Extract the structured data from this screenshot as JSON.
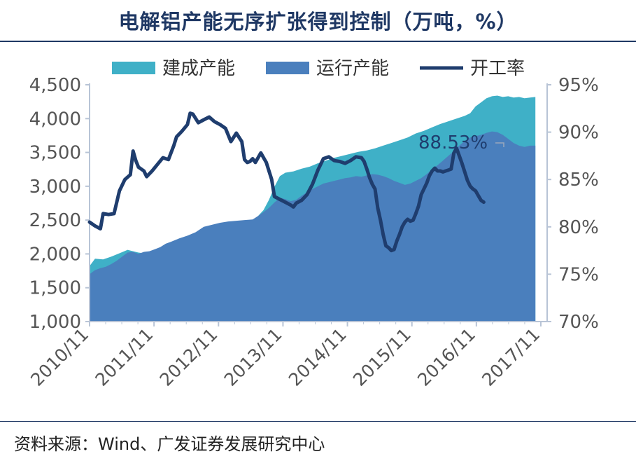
{
  "title": "电解铝产能无序扩张得到控制（万吨，%）",
  "source": "资料来源：Wind、广发证券发展研究中心",
  "chart_data": {
    "type": "area",
    "x_ticks": [
      "2010/11",
      "2011/11",
      "2012/11",
      "2013/11",
      "2014/11",
      "2015/11",
      "2016/11",
      "2017/11"
    ],
    "x_start": "2010/11",
    "y_left": {
      "ticks": [
        "1,000",
        "1,500",
        "2,000",
        "2,500",
        "3,000",
        "3,500",
        "4,000",
        "4,500"
      ],
      "range": [
        1000,
        4500
      ]
    },
    "y_right": {
      "ticks": [
        "70%",
        "75%",
        "80%",
        "85%",
        "90%",
        "95%"
      ],
      "range": [
        70,
        95
      ]
    },
    "legend": {
      "position": "top",
      "items": [
        "建成产能",
        "运行产能",
        "开工率"
      ]
    },
    "colors": {
      "built": "#3fb0c7",
      "running": "#4a7fbd",
      "rate": "#1f3d6e",
      "axis": "#b8c4d6",
      "tick_text": "#555555"
    },
    "annotation": {
      "text": "88.53%"
    },
    "series": [
      {
        "name": "建成产能",
        "axis": "left",
        "kind": "area",
        "values": [
          [
            0,
            1820
          ],
          [
            2,
            1930
          ],
          [
            5,
            1920
          ],
          [
            8,
            1960
          ],
          [
            11,
            2010
          ],
          [
            14,
            2060
          ],
          [
            16,
            2040
          ],
          [
            18,
            2020
          ],
          [
            20,
            2010
          ],
          [
            22,
            2030
          ],
          [
            24,
            2060
          ],
          [
            27,
            2090
          ],
          [
            30,
            2110
          ],
          [
            33,
            2140
          ],
          [
            36,
            2160
          ],
          [
            39,
            2200
          ],
          [
            42,
            2250
          ],
          [
            45,
            2290
          ],
          [
            48,
            2340
          ],
          [
            51,
            2400
          ],
          [
            54,
            2430
          ],
          [
            57,
            2460
          ],
          [
            60,
            2480
          ],
          [
            62,
            2560
          ],
          [
            64,
            2650
          ],
          [
            66,
            2800
          ],
          [
            68,
            2990
          ],
          [
            70,
            3150
          ],
          [
            72,
            3200
          ],
          [
            75,
            3220
          ],
          [
            78,
            3260
          ],
          [
            81,
            3290
          ],
          [
            84,
            3340
          ],
          [
            87,
            3380
          ],
          [
            90,
            3420
          ],
          [
            93,
            3450
          ],
          [
            96,
            3480
          ],
          [
            99,
            3510
          ],
          [
            102,
            3530
          ],
          [
            105,
            3560
          ],
          [
            108,
            3600
          ],
          [
            111,
            3640
          ],
          [
            114,
            3680
          ],
          [
            117,
            3720
          ],
          [
            120,
            3780
          ],
          [
            123,
            3820
          ],
          [
            126,
            3870
          ],
          [
            129,
            3920
          ],
          [
            132,
            3960
          ],
          [
            135,
            4000
          ],
          [
            138,
            4040
          ],
          [
            140,
            4080
          ],
          [
            142,
            4180
          ],
          [
            144,
            4240
          ],
          [
            146,
            4300
          ],
          [
            148,
            4330
          ],
          [
            150,
            4340
          ],
          [
            152,
            4320
          ],
          [
            154,
            4330
          ],
          [
            156,
            4310
          ],
          [
            158,
            4320
          ],
          [
            160,
            4300
          ],
          [
            162,
            4310
          ],
          [
            164,
            4320
          ]
        ]
      },
      {
        "name": "运行产能",
        "axis": "left",
        "kind": "area",
        "values": [
          [
            0,
            1700
          ],
          [
            2,
            1760
          ],
          [
            4,
            1790
          ],
          [
            6,
            1810
          ],
          [
            8,
            1850
          ],
          [
            10,
            1900
          ],
          [
            12,
            1960
          ],
          [
            14,
            2020
          ],
          [
            16,
            2030
          ],
          [
            18,
            2000
          ],
          [
            20,
            2030
          ],
          [
            22,
            2040
          ],
          [
            24,
            2070
          ],
          [
            26,
            2100
          ],
          [
            28,
            2150
          ],
          [
            30,
            2180
          ],
          [
            33,
            2230
          ],
          [
            36,
            2270
          ],
          [
            39,
            2320
          ],
          [
            42,
            2400
          ],
          [
            45,
            2430
          ],
          [
            48,
            2460
          ],
          [
            51,
            2480
          ],
          [
            54,
            2490
          ],
          [
            57,
            2500
          ],
          [
            60,
            2510
          ],
          [
            62,
            2560
          ],
          [
            64,
            2620
          ],
          [
            66,
            2680
          ],
          [
            68,
            2760
          ],
          [
            70,
            2830
          ],
          [
            72,
            2810
          ],
          [
            74,
            2780
          ],
          [
            76,
            2800
          ],
          [
            78,
            2860
          ],
          [
            80,
            2910
          ],
          [
            82,
            2960
          ],
          [
            84,
            3000
          ],
          [
            86,
            3040
          ],
          [
            88,
            3060
          ],
          [
            90,
            3080
          ],
          [
            92,
            3100
          ],
          [
            94,
            3120
          ],
          [
            96,
            3130
          ],
          [
            98,
            3150
          ],
          [
            100,
            3140
          ],
          [
            102,
            3160
          ],
          [
            104,
            3180
          ],
          [
            106,
            3170
          ],
          [
            108,
            3150
          ],
          [
            110,
            3120
          ],
          [
            112,
            3080
          ],
          [
            114,
            3050
          ],
          [
            116,
            3020
          ],
          [
            118,
            3040
          ],
          [
            120,
            3080
          ],
          [
            122,
            3120
          ],
          [
            124,
            3180
          ],
          [
            126,
            3250
          ],
          [
            128,
            3310
          ],
          [
            130,
            3380
          ],
          [
            132,
            3450
          ],
          [
            134,
            3520
          ],
          [
            136,
            3600
          ],
          [
            138,
            3670
          ],
          [
            140,
            3720
          ],
          [
            142,
            3740
          ],
          [
            144,
            3760
          ],
          [
            146,
            3790
          ],
          [
            148,
            3810
          ],
          [
            150,
            3800
          ],
          [
            152,
            3760
          ],
          [
            154,
            3700
          ],
          [
            156,
            3640
          ],
          [
            158,
            3600
          ],
          [
            160,
            3580
          ],
          [
            162,
            3600
          ],
          [
            164,
            3600
          ]
        ]
      },
      {
        "name": "开工率",
        "axis": "right",
        "kind": "line",
        "values": [
          [
            0,
            80.5
          ],
          [
            2,
            80.1
          ],
          [
            4,
            79.8
          ],
          [
            5,
            81.4
          ],
          [
            7,
            81.3
          ],
          [
            9,
            81.4
          ],
          [
            11,
            83.8
          ],
          [
            13,
            85.0
          ],
          [
            15,
            85.5
          ],
          [
            16,
            88.0
          ],
          [
            17,
            87.0
          ],
          [
            18,
            86.3
          ],
          [
            20,
            85.9
          ],
          [
            21,
            85.3
          ],
          [
            23,
            85.9
          ],
          [
            25,
            86.6
          ],
          [
            27,
            87.3
          ],
          [
            29,
            87.1
          ],
          [
            31,
            88.6
          ],
          [
            32,
            89.5
          ],
          [
            34,
            90.1
          ],
          [
            36,
            90.8
          ],
          [
            37,
            92.0
          ],
          [
            38,
            91.9
          ],
          [
            40,
            91.0
          ],
          [
            42,
            91.3
          ],
          [
            44,
            91.6
          ],
          [
            46,
            91.1
          ],
          [
            48,
            90.8
          ],
          [
            50,
            90.4
          ],
          [
            52,
            89.0
          ],
          [
            54,
            89.9
          ],
          [
            56,
            89.0
          ],
          [
            57,
            87.1
          ],
          [
            58,
            86.8
          ],
          [
            59,
            86.9
          ],
          [
            60,
            87.2
          ],
          [
            61,
            86.8
          ],
          [
            63,
            87.8
          ],
          [
            65,
            86.8
          ],
          [
            67,
            85.0
          ],
          [
            68,
            83.2
          ],
          [
            70,
            82.9
          ],
          [
            72,
            82.6
          ],
          [
            74,
            82.3
          ],
          [
            75,
            82.1
          ],
          [
            76,
            82.5
          ],
          [
            78,
            82.8
          ],
          [
            80,
            83.4
          ],
          [
            82,
            84.5
          ],
          [
            84,
            86.0
          ],
          [
            86,
            87.2
          ],
          [
            88,
            87.4
          ],
          [
            90,
            87.0
          ],
          [
            92,
            86.9
          ],
          [
            94,
            86.7
          ],
          [
            96,
            87.0
          ],
          [
            98,
            87.4
          ],
          [
            100,
            87.3
          ],
          [
            101,
            86.9
          ],
          [
            102,
            86.1
          ],
          [
            103,
            85.2
          ],
          [
            104,
            84.5
          ],
          [
            105,
            84.0
          ],
          [
            106,
            82.0
          ],
          [
            107,
            80.7
          ],
          [
            108,
            79.2
          ],
          [
            109,
            78.0
          ],
          [
            110,
            77.8
          ],
          [
            111,
            77.5
          ],
          [
            112,
            77.6
          ],
          [
            113,
            78.5
          ],
          [
            114,
            79.2
          ],
          [
            115,
            80.0
          ],
          [
            116,
            80.5
          ],
          [
            117,
            80.8
          ],
          [
            118,
            80.6
          ],
          [
            119,
            80.7
          ],
          [
            120,
            81.4
          ],
          [
            121,
            82.2
          ],
          [
            122,
            83.4
          ],
          [
            123,
            84.0
          ],
          [
            124,
            84.6
          ],
          [
            125,
            85.4
          ],
          [
            126,
            85.9
          ],
          [
            127,
            86.2
          ],
          [
            128,
            85.9
          ],
          [
            129,
            85.9
          ],
          [
            130,
            85.8
          ],
          [
            131,
            85.9
          ],
          [
            132,
            86.0
          ],
          [
            133,
            86.1
          ],
          [
            134,
            87.8
          ],
          [
            135,
            88.3
          ],
          [
            136,
            87.5
          ],
          [
            137,
            86.7
          ],
          [
            138,
            85.8
          ],
          [
            139,
            84.9
          ],
          [
            140,
            84.3
          ],
          [
            141,
            84.0
          ],
          [
            142,
            83.8
          ],
          [
            143,
            83.3
          ],
          [
            144,
            82.8
          ],
          [
            145,
            82.6
          ]
        ]
      }
    ]
  }
}
